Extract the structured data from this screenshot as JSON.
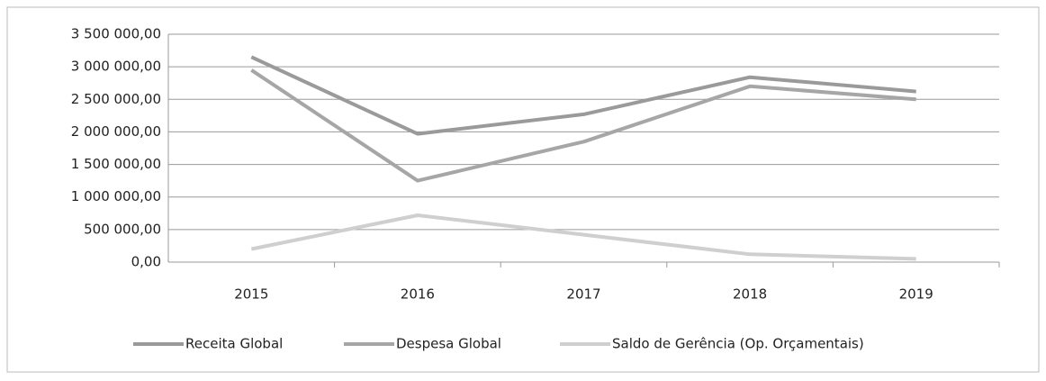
{
  "chart_data": {
    "type": "line",
    "categories": [
      "2015",
      "2016",
      "2017",
      "2018",
      "2019"
    ],
    "series": [
      {
        "name": "Receita Global",
        "color": "#9a9a9a",
        "values": [
          3150000,
          1970000,
          2270000,
          2840000,
          2620000
        ]
      },
      {
        "name": "Despesa Global",
        "color": "#a6a6a6",
        "values": [
          2950000,
          1250000,
          1850000,
          2700000,
          2500000
        ]
      },
      {
        "name": "Saldo de Gerência (Op. Orçamentais)",
        "color": "#cfcfcf",
        "values": [
          200000,
          720000,
          420000,
          120000,
          50000
        ]
      }
    ],
    "ylim": [
      0,
      3500000
    ],
    "yticks": [
      {
        "value": 0,
        "label": "0,00"
      },
      {
        "value": 500000,
        "label": "500 000,00"
      },
      {
        "value": 1000000,
        "label": "1 000 000,00"
      },
      {
        "value": 1500000,
        "label": "1 500 000,00"
      },
      {
        "value": 2000000,
        "label": "2 000 000,00"
      },
      {
        "value": 2500000,
        "label": "2 500 000,00"
      },
      {
        "value": 3000000,
        "label": "3 000 000,00"
      },
      {
        "value": 3500000,
        "label": "3 500 000,00"
      }
    ],
    "grid": true,
    "legend": "bottom"
  }
}
